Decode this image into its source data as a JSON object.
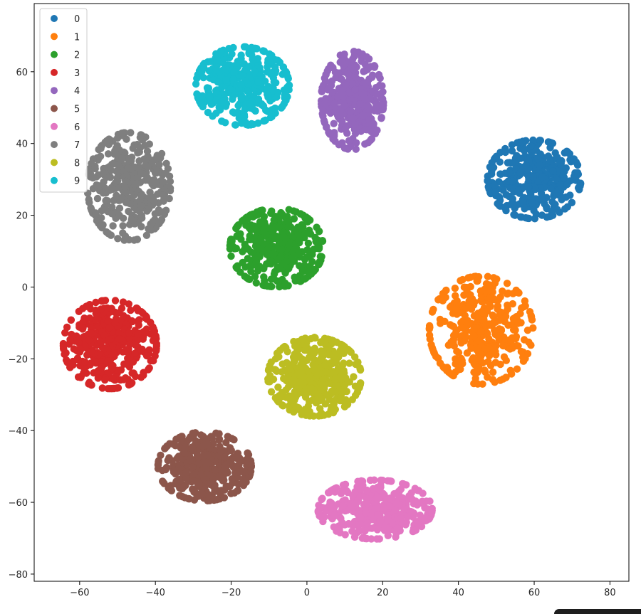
{
  "chart_data": {
    "type": "scatter",
    "title": "",
    "xlabel": "",
    "ylabel": "",
    "xlim": [
      -72,
      85
    ],
    "ylim": [
      -82,
      79
    ],
    "x_ticks": [
      -60,
      -40,
      -20,
      0,
      20,
      40,
      60,
      80
    ],
    "y_ticks": [
      -80,
      -60,
      -40,
      -20,
      0,
      20,
      40,
      60
    ],
    "x_tick_labels": [
      "−60",
      "−40",
      "−20",
      "0",
      "20",
      "40",
      "60",
      "80"
    ],
    "y_tick_labels": [
      "−80",
      "−60",
      "−40",
      "−20",
      "0",
      "20",
      "40",
      "60"
    ],
    "grid": false,
    "legend_position": "top-left",
    "series": [
      {
        "name": "0",
        "color": "#1f77b4",
        "cluster": {
          "center": [
            60,
            30
          ],
          "spread": [
            9,
            8
          ],
          "count": 360
        }
      },
      {
        "name": "1",
        "color": "#ff7f0e",
        "cluster": {
          "center": [
            46,
            -12
          ],
          "spread": [
            10,
            11
          ],
          "count": 360
        }
      },
      {
        "name": "2",
        "color": "#2ca02c",
        "cluster": {
          "center": [
            -8,
            11
          ],
          "spread": [
            9,
            8
          ],
          "count": 380
        }
      },
      {
        "name": "3",
        "color": "#d62728",
        "cluster": {
          "center": [
            -52,
            -16
          ],
          "spread": [
            9,
            9
          ],
          "count": 380
        }
      },
      {
        "name": "4",
        "color": "#9467bd",
        "cluster": {
          "center": [
            12,
            52
          ],
          "spread": [
            6,
            10
          ],
          "count": 360
        }
      },
      {
        "name": "5",
        "color": "#8c564b",
        "cluster": {
          "center": [
            -27,
            -50
          ],
          "spread": [
            9,
            7
          ],
          "count": 340
        }
      },
      {
        "name": "6",
        "color": "#e377c2",
        "cluster": {
          "center": [
            18,
            -62
          ],
          "spread": [
            11,
            6
          ],
          "count": 360
        }
      },
      {
        "name": "7",
        "color": "#7f7f7f",
        "cluster": {
          "center": [
            -47,
            28
          ],
          "spread": [
            8,
            11
          ],
          "count": 360
        }
      },
      {
        "name": "8",
        "color": "#bcbd22",
        "cluster": {
          "center": [
            2,
            -25
          ],
          "spread": [
            9,
            8
          ],
          "count": 400
        }
      },
      {
        "name": "9",
        "color": "#17becf",
        "cluster": {
          "center": [
            -17,
            56
          ],
          "spread": [
            9,
            8
          ],
          "count": 360
        }
      }
    ]
  }
}
